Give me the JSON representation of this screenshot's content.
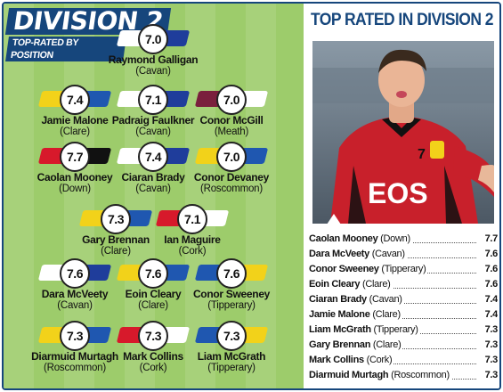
{
  "header": {
    "title": "DIVISION 2",
    "subtitle": "TOP-RATED BY POSITION"
  },
  "colors": {
    "navy": "#16467c",
    "pitch": "#9dcc6b"
  },
  "players": [
    {
      "name": "Raymond Galligan",
      "county": "(Cavan)",
      "rating": "7.0",
      "left": "#ffffff",
      "right": "#1f3d9b"
    },
    {
      "name": "Jamie Malone",
      "county": "(Clare)",
      "rating": "7.4",
      "left": "#f2d21a",
      "right": "#1f57b0"
    },
    {
      "name": "Padraig Faulkner",
      "county": "(Cavan)",
      "rating": "7.1",
      "left": "#ffffff",
      "right": "#1f3d9b"
    },
    {
      "name": "Conor McGill",
      "county": "(Meath)",
      "rating": "7.0",
      "left": "#7a1f3d",
      "right": "#ffffff"
    },
    {
      "name": "Caolan Mooney",
      "county": "(Down)",
      "rating": "7.7",
      "left": "#d7192b",
      "right": "#111111"
    },
    {
      "name": "Ciaran Brady",
      "county": "(Cavan)",
      "rating": "7.4",
      "left": "#ffffff",
      "right": "#1f3d9b"
    },
    {
      "name": "Conor Devaney",
      "county": "(Roscommon)",
      "rating": "7.0",
      "left": "#f2d21a",
      "right": "#1f57b0"
    },
    {
      "name": "Gary Brennan",
      "county": "(Clare)",
      "rating": "7.3",
      "left": "#f2d21a",
      "right": "#1f57b0"
    },
    {
      "name": "Ian Maguire",
      "county": "(Cork)",
      "rating": "7.1",
      "left": "#d7192b",
      "right": "#ffffff"
    },
    {
      "name": "Dara McVeety",
      "county": "(Cavan)",
      "rating": "7.6",
      "left": "#ffffff",
      "right": "#1f3d9b"
    },
    {
      "name": "Eoin Cleary",
      "county": "(Clare)",
      "rating": "7.6",
      "left": "#f2d21a",
      "right": "#1f57b0"
    },
    {
      "name": "Conor Sweeney",
      "county": "(Tipperary)",
      "rating": "7.6",
      "left": "#1f57b0",
      "right": "#f2d21a"
    },
    {
      "name": "Diarmuid Murtagh",
      "county": "(Roscommon)",
      "rating": "7.3",
      "left": "#f2d21a",
      "right": "#1f57b0"
    },
    {
      "name": "Mark Collins",
      "county": "(Cork)",
      "rating": "7.3",
      "left": "#d7192b",
      "right": "#ffffff"
    },
    {
      "name": "Liam McGrath",
      "county": "(Tipperary)",
      "rating": "7.3",
      "left": "#1f57b0",
      "right": "#f2d21a"
    }
  ],
  "top_rated": {
    "title": "TOP RATED IN DIVISION 2",
    "rows": [
      {
        "name": "Caolan Mooney",
        "county": "(Down)",
        "rating": "7.7"
      },
      {
        "name": "Dara McVeety",
        "county": "(Cavan)",
        "rating": "7.6"
      },
      {
        "name": "Conor Sweeney",
        "county": "(Tipperary)",
        "rating": "7.6"
      },
      {
        "name": "Eoin Cleary",
        "county": "(Clare)",
        "rating": "7.6"
      },
      {
        "name": "Ciaran Brady",
        "county": "(Cavan)",
        "rating": "7.4"
      },
      {
        "name": "Jamie Malone",
        "county": "(Clare)",
        "rating": "7.4"
      },
      {
        "name": "Liam McGrath",
        "county": "(Tipperary)",
        "rating": "7.3"
      },
      {
        "name": "Gary Brennan",
        "county": "(Clare)",
        "rating": "7.3"
      },
      {
        "name": "Mark Collins",
        "county": "(Cork)",
        "rating": "7.3"
      },
      {
        "name": "Diarmuid Murtagh",
        "county": "(Roscommon)",
        "rating": "7.3"
      }
    ]
  }
}
